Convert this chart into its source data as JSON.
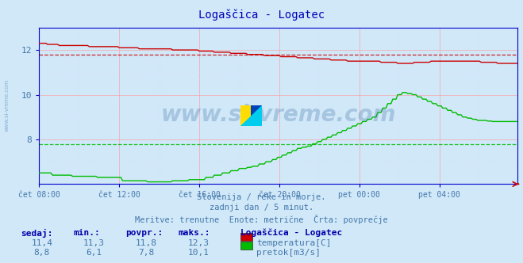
{
  "title": "Logaščica - Logatec",
  "bg_color": "#d0e8f8",
  "plot_bg_color": "#d0e8f8",
  "grid_color": "#ff9999",
  "grid_color_minor": "#ddddff",
  "yticks": [
    8,
    10,
    12
  ],
  "xtick_labels": [
    "čet 08:00",
    "čet 12:00",
    "čet 16:00",
    "čet 20:00",
    "pet 00:00",
    "pet 04:00"
  ],
  "xtick_positions": [
    0,
    48,
    96,
    144,
    192,
    240
  ],
  "n_points": 288,
  "ylim_min": 6.0,
  "ylim_max": 13.0,
  "temp_color": "#cc0000",
  "flow_color": "#00bb00",
  "temp_avg": 11.8,
  "flow_avg": 7.8,
  "axis_color": "#0000cc",
  "text_color": "#4477aa",
  "label_color": "#0000aa",
  "watermark": "www.si-vreme.com",
  "subtitle1": "Slovenija / reke in morje.",
  "subtitle2": "zadnji dan / 5 minut.",
  "subtitle3": "Meritve: trenutne  Enote: metrične  Črta: povprečje",
  "label_sedaj": "sedaj:",
  "label_min": "min.:",
  "label_povpr": "povpr.:",
  "label_maks": "maks.:",
  "temp_sedaj": "11,4",
  "temp_min": "11,3",
  "temp_povpr": "11,8",
  "temp_maks": "12,3",
  "flow_sedaj": "8,8",
  "flow_min": "6,1",
  "flow_povpr": "7,8",
  "flow_maks": "10,1",
  "legend_title": "Logaščica - Logatec",
  "legend_temp": "temperatura[C]",
  "legend_flow": "pretok[m3/s]"
}
